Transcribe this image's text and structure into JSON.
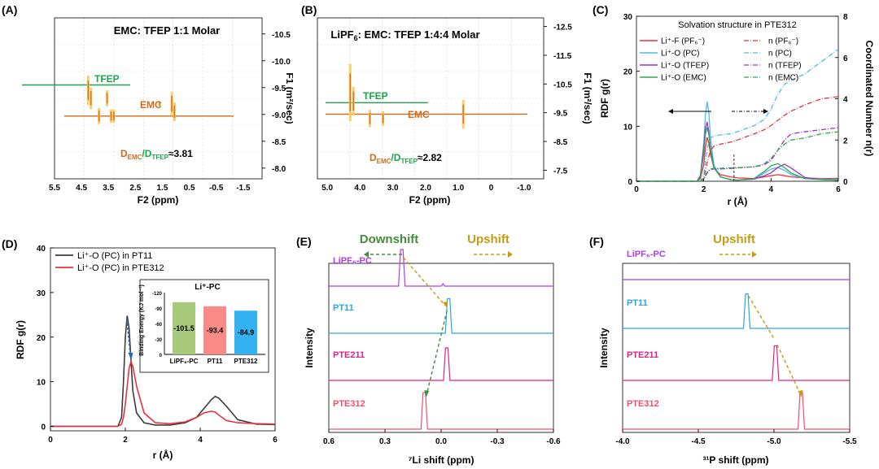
{
  "panels": {
    "a": {
      "label": "(A)",
      "title": "EMC: TFEP 1:1 Molar",
      "xlabel": "F2 (ppm)",
      "ylabel": "F1 (m²/sec)",
      "xticks": [
        "5.5",
        "4.5",
        "3.5",
        "2.5",
        "1.5",
        "0.5",
        "-0.5",
        "-1.5"
      ],
      "yticks": [
        "-10.5",
        "-10.0",
        "-9.5",
        "-9.0",
        "-8.5",
        "-8.0"
      ],
      "tfep_label": "TFEP",
      "emc_label": "EMC",
      "ratio_label": "D_EMC/D_TFEP≈3.81",
      "ratio_num": "D",
      "ratio_sub1": "EMC",
      "ratio_slash": "/D",
      "ratio_sub2": "TFEP",
      "ratio_value": "≈3.81"
    },
    "b": {
      "label": "(B)",
      "title_pre": "LiPF",
      "title_sub": "6",
      "title_post": ": EMC: TFEP 1:4:4 Molar",
      "xlabel": "F2 (ppm)",
      "ylabel": "F1 (m²/sec)",
      "xticks": [
        "5.0",
        "4.0",
        "3.0",
        "2.0",
        "1.0",
        "0",
        "-1.0"
      ],
      "yticks": [
        "-12.5",
        "-11.5",
        "-10.5",
        "-9.5",
        "-8.5",
        "-7.5"
      ],
      "tfep_label": "TFEP",
      "emc_label": "EMC",
      "ratio_num": "D",
      "ratio_sub1": "EMC",
      "ratio_slash": "/D",
      "ratio_sub2": "TFEP",
      "ratio_value": "≈2.82"
    },
    "c": {
      "label": "(C)",
      "title": "Solvation structure in PTE312",
      "xlabel": "r (Å)",
      "ylabel_left": "RDF g(r)",
      "ylabel_right": "Coordinated Number n(r)",
      "xticks": [
        "0",
        "2",
        "4",
        "6"
      ],
      "yticks_left": [
        "0",
        "10",
        "20",
        "30"
      ],
      "yticks_right": [
        "0",
        "2",
        "4",
        "6",
        "8"
      ],
      "legend_left": [
        "Li⁺-F (PF₆⁻)",
        "Li⁺-O (PC)",
        "Li⁺-O (TFEP)",
        "Li⁺-O (EMC)"
      ],
      "legend_right": [
        "n (PF₆⁻)",
        "n (PC)",
        "n (TFEP)",
        "n (EMC)"
      ]
    },
    "d": {
      "label": "(D)",
      "xlabel": "r (Å)",
      "ylabel": "RDF g(r)",
      "xticks": [
        "0",
        "2",
        "4",
        "6"
      ],
      "yticks": [
        "0",
        "10",
        "20",
        "30",
        "40"
      ],
      "legend": [
        "Li⁺-O (PC)  in PT11",
        "Li⁺-O (PC)  in PTE312"
      ],
      "inset_title": "Li⁺-PC",
      "inset_ylabel": "Binding Energy (KJ mol⁻¹)",
      "inset_yticks": [
        "0",
        "-30",
        "-60",
        "-90",
        "-120"
      ]
    },
    "e": {
      "label": "(E)",
      "downshift": "Downshift",
      "upshift": "Upshift",
      "xlabel": "⁷Li shift (ppm)",
      "ylabel": "Intensity",
      "xticks": [
        "0.6",
        "0.3",
        "0.0",
        "-0.3",
        "-0.6"
      ],
      "traces": [
        "LiPF₆-PC",
        "PT11",
        "PTE211",
        "PTE312"
      ]
    },
    "f": {
      "label": "(F)",
      "upshift": "Upshift",
      "xlabel": "³¹P shift (ppm)",
      "ylabel": "Intensity",
      "xticks": [
        "-4.0",
        "-4.5",
        "-5.0",
        "-5.5"
      ],
      "traces": [
        "LiPF₆-PC",
        "PT11",
        "PTE211",
        "PTE312"
      ]
    }
  },
  "colors": {
    "pf6": "#e8323c",
    "pc": "#4dbbea",
    "tfep": "#9b30d9",
    "emc": "#2fa84f",
    "pt11_rdf": "#3c3c3c",
    "pte312_rdf": "#e8323c",
    "lipf6pc": "#b03cf0",
    "pt11": "#2aa6e0",
    "pte211": "#e0218a",
    "pte312": "#f0506e",
    "shift_green": "#3f8f3a",
    "shift_gold": "#c89a10",
    "emc_orange": "#d2691e",
    "tfep_green": "#1aa64a"
  },
  "chart_data": [
    {
      "id": "A",
      "type": "scatter",
      "title": "EMC: TFEP 1:1 Molar",
      "xlabel": "F2 (ppm)",
      "ylabel": "F1 (m²/sec)",
      "xlim": [
        5.5,
        -2.2
      ],
      "ylim": [
        -10.8,
        -7.8
      ],
      "tfep_diffusion": -9.55,
      "emc_diffusion": -8.97,
      "peaks": [
        {
          "ppm": 4.25,
          "d": -9.45,
          "h": 0.55,
          "series": "TFEP"
        },
        {
          "ppm": 4.15,
          "d": -9.3,
          "h": 0.4,
          "series": "TFEP"
        },
        {
          "ppm": 3.55,
          "d": -9.3,
          "h": 0.3,
          "series": "TFEP"
        },
        {
          "ppm": 3.85,
          "d": -8.97,
          "h": 0.3,
          "series": "EMC"
        },
        {
          "ppm": 3.4,
          "d": -8.97,
          "h": 0.25,
          "series": "EMC"
        },
        {
          "ppm": 3.3,
          "d": -8.97,
          "h": 0.25,
          "series": "EMC"
        },
        {
          "ppm": 1.15,
          "d": -9.2,
          "h": 0.45,
          "series": "EMC"
        },
        {
          "ppm": 1.05,
          "d": -9.05,
          "h": 0.35,
          "series": "EMC"
        },
        {
          "ppm": 1.6,
          "d": -9.2,
          "h": 0.1,
          "series": "EMC"
        }
      ],
      "ratio": "D_EMC/D_TFEP≈3.81"
    },
    {
      "id": "B",
      "type": "scatter",
      "title": "LiPF6: EMC: TFEP 1:4:4 Molar",
      "xlabel": "F2 (ppm)",
      "ylabel": "F1 (m²/sec)",
      "xlim": [
        5.3,
        -1.6
      ],
      "ylim": [
        -12.8,
        -7.2
      ],
      "tfep_diffusion": -9.85,
      "emc_diffusion": -9.45,
      "peaks": [
        {
          "ppm": 4.3,
          "d": -10.2,
          "h": 2.0,
          "series": "TFEP"
        },
        {
          "ppm": 4.2,
          "d": -9.9,
          "h": 1.0,
          "series": "TFEP"
        },
        {
          "ppm": 3.7,
          "d": -9.3,
          "h": 0.6,
          "series": "EMC"
        },
        {
          "ppm": 3.3,
          "d": -9.3,
          "h": 0.5,
          "series": "EMC"
        },
        {
          "ppm": 0.85,
          "d": -9.45,
          "h": 1.0,
          "series": "EMC"
        }
      ],
      "ratio": "D_EMC/D_TFEP≈2.82"
    },
    {
      "id": "C",
      "type": "line",
      "title": "Solvation structure in PTE312",
      "xlabel": "r (Å)",
      "ylabel": "RDF g(r)",
      "y2label": "Coordinated Number n(r)",
      "xlim": [
        0,
        6
      ],
      "ylim": [
        0,
        30
      ],
      "y2lim": [
        0,
        8
      ],
      "x": [
        0,
        1.8,
        1.9,
        2.0,
        2.05,
        2.1,
        2.15,
        2.2,
        2.3,
        2.5,
        2.8,
        3.0,
        3.5,
        3.8,
        4.0,
        4.2,
        4.4,
        4.6,
        5.0,
        5.5,
        6.0
      ],
      "series": [
        {
          "name": "Li⁺-F (PF₆⁻)",
          "axis": "left",
          "values": [
            0,
            0,
            0.5,
            3,
            6,
            8,
            7,
            5,
            2.5,
            1.2,
            0.8,
            0.6,
            0.5,
            0.8,
            1.0,
            1.2,
            1.0,
            0.8,
            0.6,
            0.5,
            0.5
          ]
        },
        {
          "name": "Li⁺-O (PC)",
          "axis": "left",
          "values": [
            0,
            0,
            1,
            7,
            12,
            14.5,
            12.5,
            8,
            3,
            0.8,
            0.3,
            0.2,
            0.4,
            1.5,
            2.2,
            2.5,
            2.0,
            1.2,
            0.5,
            0.4,
            0.3
          ]
        },
        {
          "name": "Li⁺-O (TFEP)",
          "axis": "left",
          "values": [
            0,
            0,
            1,
            6,
            9.5,
            10.8,
            9,
            6,
            2.5,
            0.8,
            0.3,
            0.2,
            0.4,
            1.0,
            1.5,
            2.5,
            3.1,
            2.4,
            0.7,
            0.3,
            0.2
          ]
        },
        {
          "name": "Li⁺-O (EMC)",
          "axis": "left",
          "values": [
            0,
            0,
            0.8,
            5,
            8.5,
            9.8,
            8.5,
            6,
            2.5,
            0.8,
            0.3,
            0.2,
            0.5,
            1.8,
            2.8,
            3.2,
            2.5,
            1.5,
            0.5,
            0.3,
            0.2
          ]
        },
        {
          "name": "n (PF₆⁻)",
          "axis": "right",
          "values": [
            0,
            0,
            0,
            0.2,
            0.5,
            0.9,
            1.2,
            1.5,
            1.7,
            1.8,
            1.9,
            2.0,
            2.3,
            2.5,
            2.7,
            2.95,
            3.2,
            3.4,
            3.7,
            4.0,
            4.1
          ]
        },
        {
          "name": "n (PC)",
          "axis": "right",
          "values": [
            0,
            0,
            0,
            0.3,
            0.9,
            1.5,
            1.9,
            2.1,
            2.2,
            2.25,
            2.3,
            2.4,
            2.7,
            3.0,
            3.5,
            4.2,
            4.7,
            4.9,
            5.2,
            5.8,
            6.4
          ]
        },
        {
          "name": "n (TFEP)",
          "axis": "right",
          "values": [
            0,
            0,
            0,
            0.1,
            0.25,
            0.4,
            0.5,
            0.55,
            0.6,
            0.6,
            0.62,
            0.65,
            0.7,
            0.8,
            1.0,
            1.5,
            2.0,
            2.3,
            2.4,
            2.5,
            2.6
          ]
        },
        {
          "name": "n (EMC)",
          "axis": "right",
          "values": [
            0,
            0,
            0,
            0.1,
            0.3,
            0.45,
            0.55,
            0.6,
            0.62,
            0.63,
            0.65,
            0.66,
            0.7,
            0.85,
            1.1,
            1.5,
            1.8,
            2.0,
            2.1,
            2.3,
            2.4
          ]
        }
      ],
      "markers": [
        2.9
      ]
    },
    {
      "id": "D",
      "type": "line",
      "xlabel": "r (Å)",
      "ylabel": "RDF g(r)",
      "xlim": [
        0,
        6
      ],
      "ylim": [
        -1,
        40
      ],
      "x": [
        0,
        1.8,
        1.9,
        1.95,
        2.0,
        2.05,
        2.1,
        2.15,
        2.2,
        2.3,
        2.5,
        2.8,
        3.2,
        3.6,
        3.9,
        4.1,
        4.3,
        4.4,
        4.5,
        4.7,
        5.0,
        5.5,
        6.0
      ],
      "series": [
        {
          "name": "Li⁺-O (PC)  in PT11",
          "values": [
            0,
            0,
            2,
            10,
            20,
            24.8,
            22,
            15,
            8,
            3,
            0.8,
            0.3,
            0.3,
            0.8,
            2.0,
            4.0,
            6.0,
            6.7,
            6.3,
            4.5,
            1.5,
            0.5,
            0.4
          ]
        },
        {
          "name": "Li⁺-O (PC)  in PTE312",
          "values": [
            0,
            0,
            0.5,
            2,
            5,
            9,
            13,
            14.5,
            13.5,
            9,
            3,
            0.8,
            0.6,
            1.0,
            2.0,
            3.0,
            3.4,
            3.2,
            2.5,
            1.3,
            0.8,
            0.6,
            0.5
          ]
        }
      ],
      "inset": {
        "type": "bar",
        "title": "Li⁺-PC",
        "ylabel": "Binding Energy (KJ mol⁻¹)",
        "ylim": [
          0,
          -120
        ],
        "categories": [
          "LiPF₆-PC",
          "PT11",
          "PTE312"
        ],
        "values": [
          -101.5,
          -93.4,
          -84.9
        ],
        "value_labels": [
          "-101.5",
          "-93.4",
          "-84.9"
        ],
        "colors": [
          "#a8c97a",
          "#f98a86",
          "#33b1f0"
        ]
      }
    },
    {
      "id": "E",
      "type": "line",
      "xlabel": "⁷Li shift (ppm)",
      "ylabel": "Intensity",
      "xlim": [
        0.6,
        -0.6
      ],
      "traces": [
        {
          "name": "LiPF₆-PC",
          "peak": 0.21,
          "height": 0.9
        },
        {
          "name": "PT11",
          "peak": -0.04,
          "height": 0.85
        },
        {
          "name": "PTE211",
          "peak": -0.03,
          "height": 0.8
        },
        {
          "name": "PTE312",
          "peak": 0.09,
          "height": 0.9
        }
      ],
      "small_peak": -0.01,
      "annotations": [
        "Downshift",
        "Upshift"
      ]
    },
    {
      "id": "F",
      "type": "line",
      "xlabel": "³¹P shift (ppm)",
      "ylabel": "Intensity",
      "xlim": [
        -4.0,
        -5.5
      ],
      "traces": [
        {
          "name": "LiPF₆-PC",
          "peak": null,
          "height": 0
        },
        {
          "name": "PT11",
          "peak": -4.82,
          "height": 0.85
        },
        {
          "name": "PTE211",
          "peak": -5.01,
          "height": 0.85
        },
        {
          "name": "PTE312",
          "peak": -5.18,
          "height": 0.9
        }
      ],
      "annotations": [
        "Upshift"
      ]
    }
  ]
}
